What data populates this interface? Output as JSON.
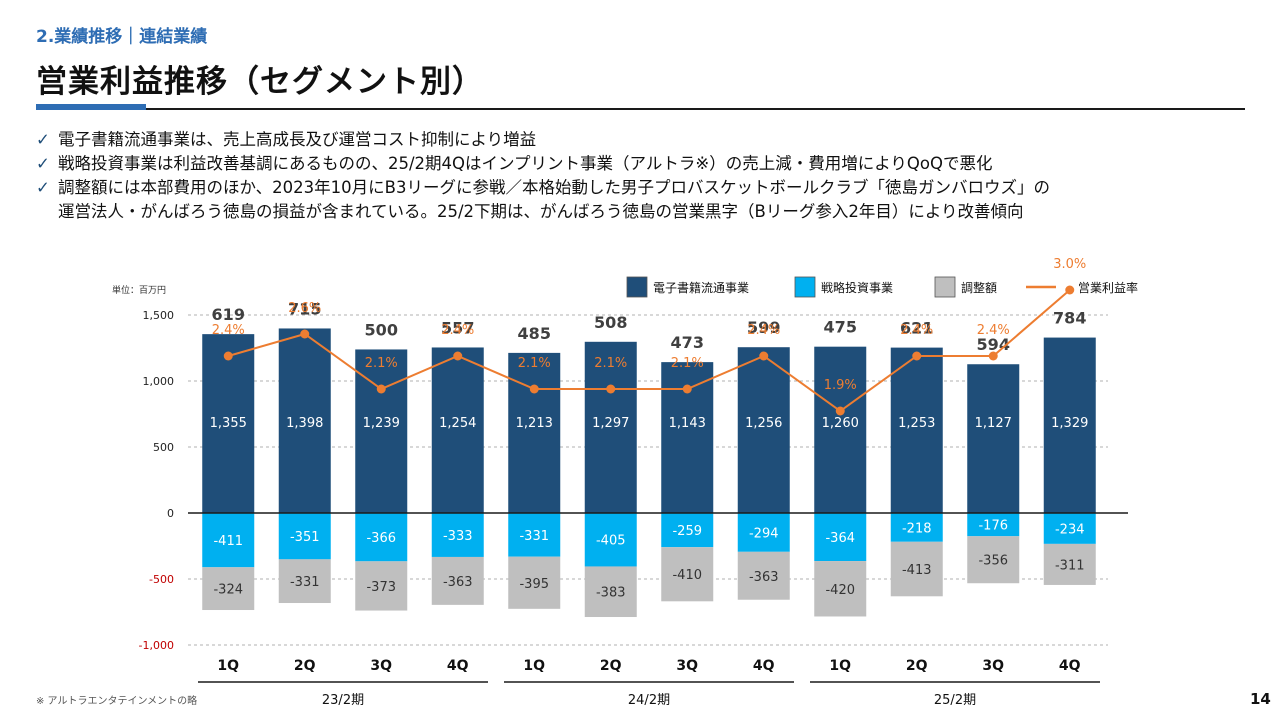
{
  "header": {
    "section": "2.業績推移｜連結業績",
    "title": "営業利益推移（セグメント別）"
  },
  "bullets": [
    "電子書籍流通事業は、売上高成長及び運営コスト抑制により増益",
    "戦略投資事業は利益改善基調にあるものの、25/2期4Qはインプリント事業（アルトラ※）の売上減・費用増によりQoQで悪化",
    "調整額には本部費用のほか、2023年10月にB3リーグに参戦／本格始動した男子プロバスケットボールクラブ「徳島ガンバロウズ」の\n運営法人・がんばろう徳島の損益が含まれている。25/2下期は、がんばろう徳島の営業黒字（Bリーグ参入2年目）により改善傾向"
  ],
  "chart_data": {
    "type": "bar",
    "unit_label": "単位：百万円",
    "categories": [
      "1Q",
      "2Q",
      "3Q",
      "4Q",
      "1Q",
      "2Q",
      "3Q",
      "4Q",
      "1Q",
      "2Q",
      "3Q",
      "4Q"
    ],
    "periods": [
      {
        "label": "23/2期",
        "start": 0,
        "end": 3
      },
      {
        "label": "24/2期",
        "start": 4,
        "end": 7
      },
      {
        "label": "25/2期",
        "start": 8,
        "end": 11
      }
    ],
    "ylim": [
      -1000,
      1500
    ],
    "yticks": [
      -1000,
      -500,
      0,
      500,
      1000,
      1500
    ],
    "ytick_labels": [
      "-1,000",
      "-500",
      "0",
      "500",
      "1,000",
      "1,500"
    ],
    "series": [
      {
        "name": "電子書籍流通事業",
        "color": "#1f4e79",
        "values": [
          1355,
          1398,
          1239,
          1254,
          1213,
          1297,
          1143,
          1256,
          1260,
          1253,
          1127,
          1329
        ],
        "labels": [
          "1,355",
          "1,398",
          "1,239",
          "1,254",
          "1,213",
          "1,297",
          "1,143",
          "1,256",
          "1,260",
          "1,253",
          "1,127",
          "1,329"
        ]
      },
      {
        "name": "戦略投資事業",
        "color": "#00b0f0",
        "values": [
          -411,
          -351,
          -366,
          -333,
          -331,
          -405,
          -259,
          -294,
          -364,
          -218,
          -176,
          -234
        ],
        "labels": [
          "-411",
          "-351",
          "-366",
          "-333",
          "-331",
          "-405",
          "-259",
          "-294",
          "-364",
          "-218",
          "-176",
          "-234"
        ]
      },
      {
        "name": "調整額",
        "color": "#bfbfbf",
        "values": [
          -324,
          -331,
          -373,
          -363,
          -395,
          -383,
          -410,
          -363,
          -420,
          -413,
          -356,
          -311
        ],
        "labels": [
          "-324",
          "-331",
          "-373",
          "-363",
          "-395",
          "-383",
          "-410",
          "-363",
          "-420",
          "-413",
          "-356",
          "-311"
        ]
      }
    ],
    "totals": [
      619,
      715,
      500,
      557,
      485,
      508,
      473,
      599,
      475,
      621,
      594,
      784
    ],
    "line": {
      "name": "営業利益率",
      "color": "#ed7d31",
      "values": [
        2.4,
        2.6,
        2.1,
        2.4,
        2.1,
        2.1,
        2.1,
        2.4,
        1.9,
        2.4,
        2.4,
        3.0
      ],
      "labels": [
        "2.4%",
        "2.6%",
        "2.1%",
        "2.4%",
        "2.1%",
        "2.1%",
        "2.1%",
        "2.4%",
        "1.9%",
        "2.4%",
        "2.4%",
        "3.0%"
      ]
    }
  },
  "footnote": "※ アルトラエンタテインメントの略",
  "page_number": "14"
}
